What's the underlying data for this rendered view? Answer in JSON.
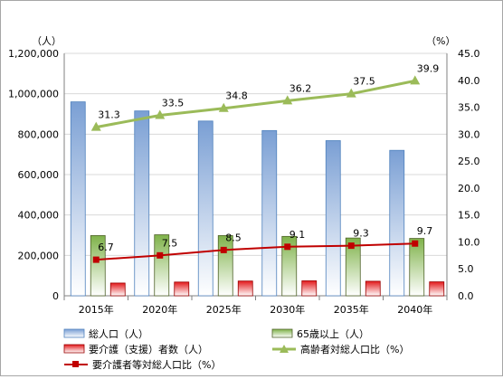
{
  "chart_data": {
    "type": "bar",
    "categories": [
      "2015年",
      "2020年",
      "2025年",
      "2030年",
      "2035年",
      "2040年"
    ],
    "left_axis": {
      "unit": "（人）",
      "ylim": [
        0,
        1200000
      ],
      "ticks": [
        0,
        200000,
        400000,
        600000,
        800000,
        1000000,
        1200000
      ],
      "tick_labels": [
        "0",
        "200,000",
        "400,000",
        "600,000",
        "800,000",
        "1,000,000",
        "1,200,000"
      ]
    },
    "right_axis": {
      "unit": "（%）",
      "ylim": [
        0,
        45
      ],
      "ticks": [
        0,
        5,
        10,
        15,
        20,
        25,
        30,
        35,
        40,
        45
      ],
      "tick_labels": [
        "0.0",
        "5.0",
        "10.0",
        "15.0",
        "20.0",
        "25.0",
        "30.0",
        "35.0",
        "40.0",
        "45.0"
      ]
    },
    "series": [
      {
        "name": "総人口（人）",
        "kind": "bar",
        "axis": "left",
        "color": "#95b3d7",
        "values": [
          960000,
          915000,
          865000,
          818000,
          768000,
          720000
        ]
      },
      {
        "name": "65歳以上（人）",
        "kind": "bar",
        "axis": "left",
        "color": "#9bbb59",
        "values": [
          298000,
          302000,
          298000,
          294000,
          286000,
          284000
        ]
      },
      {
        "name": "要介護（支援）者数（人）",
        "kind": "bar",
        "axis": "left",
        "color": "#e31a1c",
        "values": [
          63000,
          68000,
          73000,
          74000,
          72000,
          69000
        ]
      },
      {
        "name": "高齢者対総人口比（%）",
        "kind": "line",
        "axis": "right",
        "color": "#9bbb59",
        "marker": "triangle",
        "values": [
          31.3,
          33.5,
          34.8,
          36.2,
          37.5,
          39.9
        ],
        "labels": [
          "31.3",
          "33.5",
          "34.8",
          "36.2",
          "37.5",
          "39.9"
        ]
      },
      {
        "name": "要介護者等対総人口比（%）",
        "kind": "line",
        "axis": "right",
        "color": "#c00000",
        "marker": "square",
        "values": [
          6.7,
          7.5,
          8.5,
          9.1,
          9.3,
          9.7
        ],
        "labels": [
          "6.7",
          "7.5",
          "8.5",
          "9.1",
          "9.3",
          "9.7"
        ]
      }
    ],
    "legend_position": "bottom",
    "grid": true
  }
}
